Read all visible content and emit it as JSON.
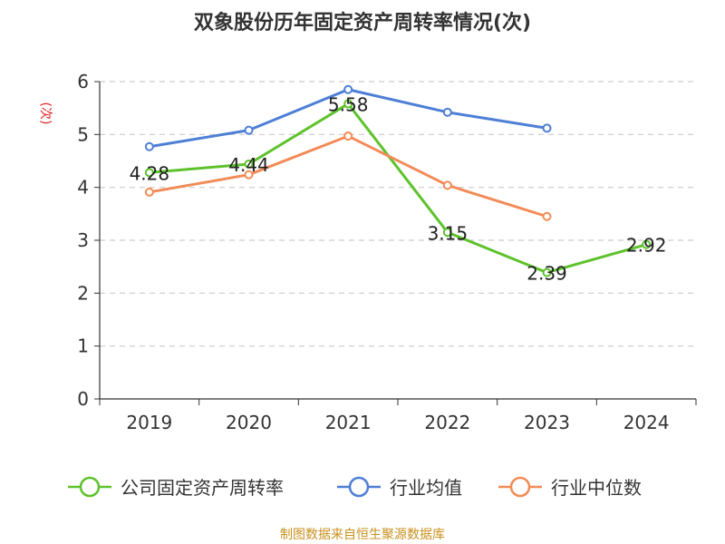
{
  "chart_data": {
    "type": "line",
    "title": "双象股份历年固定资产周转率情况(次)",
    "ylabel": "(次)",
    "xlabel": "",
    "categories": [
      "2019",
      "2020",
      "2021",
      "2022",
      "2023",
      "2024"
    ],
    "ylim": [
      0,
      6
    ],
    "yticks": [
      "0",
      "1",
      "2",
      "3",
      "4",
      "5",
      "6"
    ],
    "grid": true,
    "legend_position": "bottom",
    "series": [
      {
        "name": "公司固定资产周转率",
        "color": "#5ec22c",
        "values": [
          4.28,
          4.44,
          5.58,
          3.15,
          2.39,
          2.92
        ],
        "labels": [
          "4.28",
          "4.44",
          "5.58",
          "3.15",
          "2.39",
          "2.92"
        ]
      },
      {
        "name": "行业均值",
        "color": "#4e7fd6",
        "values": [
          4.77,
          5.08,
          5.85,
          5.42,
          5.12,
          null
        ]
      },
      {
        "name": "行业中位数",
        "color": "#f28b57",
        "values": [
          3.91,
          4.24,
          4.97,
          4.04,
          3.45,
          null
        ]
      }
    ],
    "source": "制图数据来自恒生聚源数据库"
  }
}
